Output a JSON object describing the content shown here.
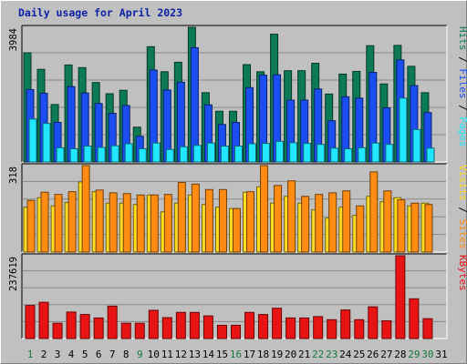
{
  "title": "Daily usage for April 2023",
  "colors": {
    "pages": "#20e6ff",
    "files": "#1a4ef0",
    "hits": "#0d7a56",
    "visits": "#ffdc20",
    "sites": "#ff8c12",
    "kbytes": "#e81414",
    "day_weekday": "#000000",
    "day_weekend": "#127a3c",
    "grid": "#8a8a8a"
  },
  "chart_data": [
    {
      "type": "bar",
      "panel": "top",
      "ymax": 3984,
      "ymax_label": "3984",
      "right_label": [
        {
          "text": "Pages",
          "color": "#20e6ff"
        },
        {
          "text": " / ",
          "color": "#000000"
        },
        {
          "text": "Files",
          "color": "#1a4ef0"
        },
        {
          "text": " / ",
          "color": "#000000"
        },
        {
          "text": "Hits",
          "color": "#0d7a56"
        }
      ],
      "categories": [
        "1",
        "2",
        "3",
        "4",
        "5",
        "6",
        "7",
        "8",
        "9",
        "10",
        "11",
        "12",
        "13",
        "14",
        "15",
        "16",
        "17",
        "18",
        "19",
        "20",
        "21",
        "22",
        "23",
        "24",
        "25",
        "26",
        "27",
        "28",
        "29",
        "30",
        "31"
      ],
      "series": [
        {
          "name": "Hits",
          "values": [
            3230,
            2740,
            1700,
            2870,
            2790,
            2350,
            2020,
            2120,
            1030,
            3410,
            2670,
            2950,
            3984,
            2050,
            1500,
            1500,
            2880,
            2670,
            3780,
            2700,
            2700,
            2920,
            2010,
            2600,
            2680,
            3440,
            2310,
            3450,
            2830,
            2050,
            0
          ]
        },
        {
          "name": "Files",
          "values": [
            2140,
            2030,
            1170,
            2230,
            2040,
            1730,
            1440,
            1670,
            760,
            2720,
            2130,
            2360,
            3380,
            1690,
            1110,
            1170,
            2200,
            2570,
            2580,
            1830,
            1830,
            2160,
            1220,
            1930,
            1890,
            2650,
            1600,
            3020,
            2260,
            1460,
            0
          ]
        },
        {
          "name": "Pages",
          "values": [
            1270,
            1140,
            420,
            390,
            470,
            430,
            480,
            540,
            390,
            560,
            370,
            450,
            490,
            560,
            470,
            470,
            540,
            550,
            610,
            570,
            550,
            520,
            410,
            390,
            420,
            560,
            520,
            1890,
            960,
            410,
            0
          ]
        }
      ]
    },
    {
      "type": "bar",
      "panel": "middle",
      "ymax": 318,
      "ymax_label": "318",
      "right_label": [
        {
          "text": "Sites",
          "color": "#ff8c12"
        },
        {
          "text": " / ",
          "color": "#000000"
        },
        {
          "text": "Visits",
          "color": "#ffdc20"
        }
      ],
      "categories": [
        "1",
        "2",
        "3",
        "4",
        "5",
        "6",
        "7",
        "8",
        "9",
        "10",
        "11",
        "12",
        "13",
        "14",
        "15",
        "16",
        "17",
        "18",
        "19",
        "20",
        "21",
        "22",
        "23",
        "24",
        "25",
        "26",
        "27",
        "28",
        "29",
        "30",
        "31"
      ],
      "series": [
        {
          "name": "Visits",
          "values": [
            165,
            200,
            170,
            182,
            258,
            222,
            180,
            180,
            175,
            210,
            148,
            180,
            210,
            175,
            165,
            160,
            220,
            240,
            180,
            205,
            180,
            155,
            125,
            165,
            135,
            205,
            185,
            200,
            170,
            180,
            0
          ]
        },
        {
          "name": "Sites",
          "values": [
            190,
            220,
            212,
            222,
            318,
            228,
            218,
            215,
            210,
            210,
            212,
            256,
            250,
            230,
            230,
            160,
            222,
            318,
            245,
            262,
            205,
            212,
            218,
            225,
            170,
            295,
            225,
            192,
            180,
            175,
            0
          ]
        }
      ]
    },
    {
      "type": "bar",
      "panel": "bottom",
      "ymax": 237619,
      "ymax_label": "237619",
      "right_label": [
        {
          "text": "KBytes",
          "color": "#e81414"
        }
      ],
      "categories": [
        "1",
        "2",
        "3",
        "4",
        "5",
        "6",
        "7",
        "8",
        "9",
        "10",
        "11",
        "12",
        "13",
        "14",
        "15",
        "16",
        "17",
        "18",
        "19",
        "20",
        "21",
        "22",
        "23",
        "24",
        "25",
        "26",
        "27",
        "28",
        "29",
        "30",
        "31"
      ],
      "series": [
        {
          "name": "KBytes",
          "values": [
            95000,
            104000,
            44000,
            76000,
            69000,
            59000,
            93000,
            44000,
            44000,
            81000,
            60000,
            75000,
            75000,
            65000,
            38000,
            38000,
            75000,
            69000,
            87000,
            59000,
            59000,
            63000,
            54000,
            82000,
            54000,
            91000,
            51000,
            237619,
            114000,
            57000,
            0
          ]
        }
      ]
    }
  ]
}
